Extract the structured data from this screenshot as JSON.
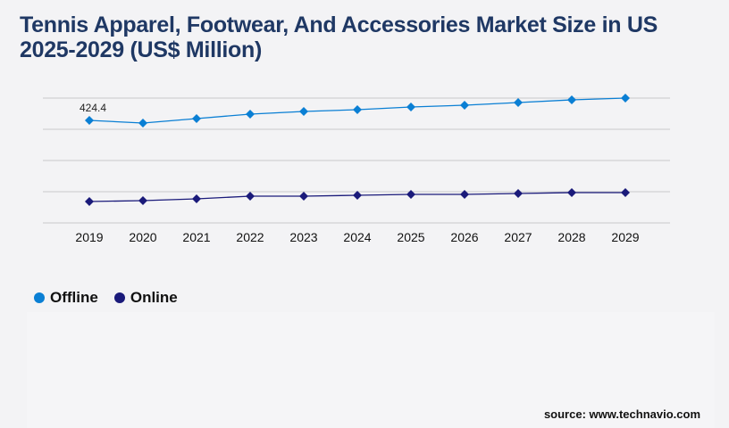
{
  "title": "Tennis Apparel, Footwear, And Accessories Market Size in US 2025-2029 (US$ Million)",
  "source": "source: www.technavio.com",
  "chart_data": {
    "type": "line",
    "categories": [
      "2019",
      "2020",
      "2021",
      "2022",
      "2023",
      "2024",
      "2025",
      "2026",
      "2027",
      "2028",
      "2029"
    ],
    "series": [
      {
        "name": "Offline",
        "color": "#0a7fd4",
        "values": [
          424.4,
          413.3,
          431.8,
          450.2,
          461.3,
          468.6,
          479.7,
          487.1,
          498.2,
          509.2,
          516.6
        ]
      },
      {
        "name": "Online",
        "color": "#1a1a7a",
        "values": [
          88.6,
          92.3,
          99.6,
          110.7,
          110.7,
          114.4,
          118.1,
          118.1,
          121.8,
          125.5,
          125.5
        ]
      }
    ],
    "annotations": [
      {
        "series": "Offline",
        "category": "2019",
        "label": "424.4"
      }
    ],
    "ylim": [
      0,
      516.6
    ],
    "grid": true,
    "legend": "bottom-left"
  }
}
